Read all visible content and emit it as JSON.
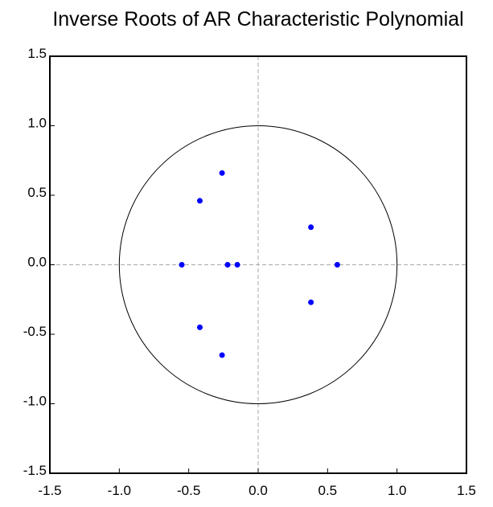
{
  "chart_data": {
    "type": "scatter",
    "title": "Inverse Roots of AR Characteristic Polynomial",
    "x": [
      -0.26,
      -0.42,
      0.38,
      -0.55,
      -0.22,
      -0.15,
      0.57,
      0.38,
      -0.42,
      -0.26
    ],
    "values": [
      0.66,
      0.46,
      0.27,
      0,
      0,
      0,
      0,
      -0.27,
      -0.45,
      -0.65
    ],
    "color": "#0000ff",
    "unit_circle": true,
    "xlim": [
      -1.5,
      1.5
    ],
    "ylim": [
      -1.5,
      1.5
    ],
    "xticks": [
      -1.5,
      {
        "value": -1,
        "label": "-1.0"
      },
      -0.5,
      {
        "value": 0,
        "label": "0.0"
      },
      0.5,
      {
        "value": 1,
        "label": "1.0"
      },
      1.5
    ],
    "yticks": [
      -1.5,
      {
        "value": -1,
        "label": "-1.0"
      },
      -0.5,
      {
        "value": 0,
        "label": "0.0"
      },
      0.5,
      {
        "value": 1,
        "label": "1.0"
      },
      1.5
    ]
  }
}
